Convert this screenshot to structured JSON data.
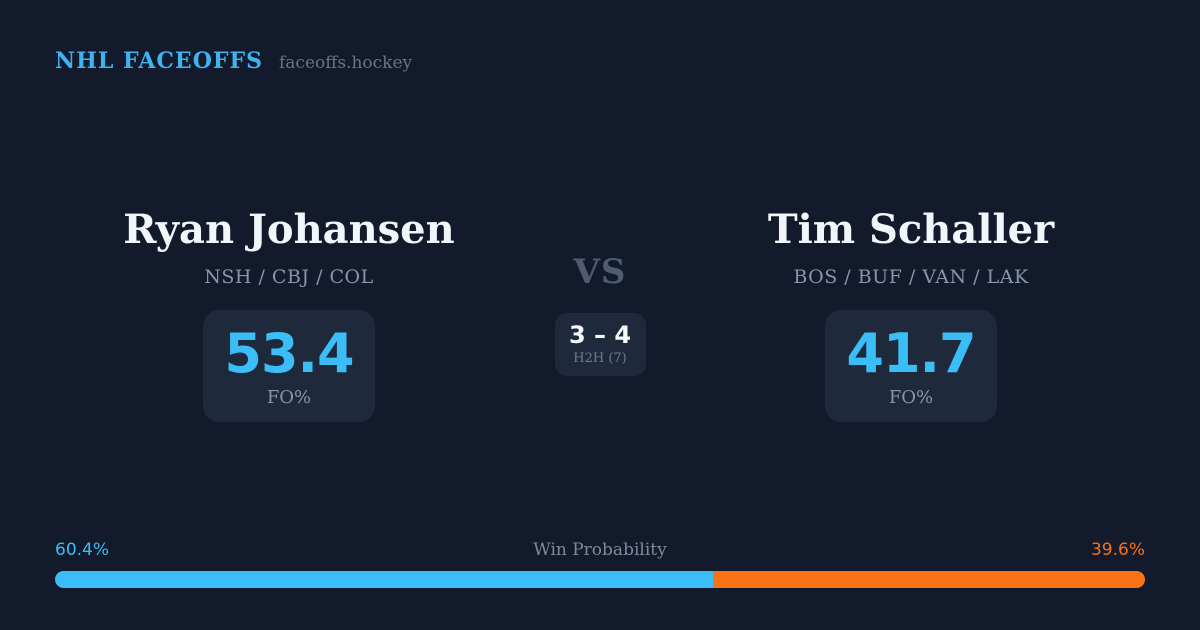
{
  "header": {
    "brand": "NHL FACEOFFS",
    "site": "faceoffs.hockey"
  },
  "matchup": {
    "left_player": {
      "name": "Ryan Johansen",
      "teams": "NSH / CBJ / COL",
      "fo_pct": "53.4",
      "fo_label": "FO%"
    },
    "right_player": {
      "name": "Tim Schaller",
      "teams": "BOS / BUF / VAN / LAK",
      "fo_pct": "41.7",
      "fo_label": "FO%"
    },
    "vs_label": "VS",
    "h2h": {
      "score": "3 – 4",
      "label": "H2H (7)"
    }
  },
  "win_probability": {
    "title": "Win Probability",
    "left_pct_label": "60.4%",
    "right_pct_label": "39.6%",
    "left_value": 60.4,
    "right_value": 39.6
  },
  "colors": {
    "background": "#121a2b",
    "card": "#1e2a3c",
    "accent_blue": "#3bbdf8",
    "accent_orange": "#f97316",
    "brand_blue": "#3fb3f0"
  }
}
